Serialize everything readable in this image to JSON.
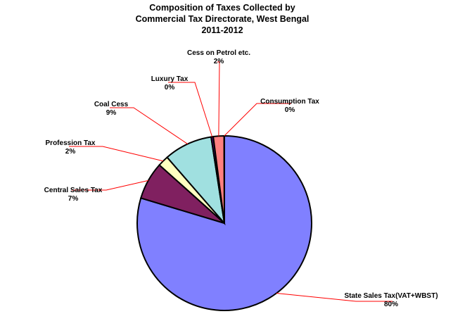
{
  "chart_data": {
    "type": "pie",
    "title_lines": [
      "Composition of Taxes Collected by",
      "Commercial Tax Directorate,  West Bengal",
      "2011-2012"
    ],
    "slices": [
      {
        "name": "State Sales Tax(VAT+WBST)",
        "value": 80,
        "label": "80%",
        "color": "#8080FF"
      },
      {
        "name": "Central Sales Tax",
        "value": 7,
        "label": "7%",
        "color": "#802060"
      },
      {
        "name": "Profession Tax",
        "value": 2,
        "label": "2%",
        "color": "#FFFFC0"
      },
      {
        "name": "Coal Cess",
        "value": 9,
        "label": "9%",
        "color": "#A0E0E0"
      },
      {
        "name": "Luxury Tax",
        "value": 0.4,
        "label": "0%",
        "color": "#600080"
      },
      {
        "name": "Cess on Petrol etc.",
        "value": 2,
        "label": "2%",
        "color": "#FF8080"
      },
      {
        "name": "Consumption Tax",
        "value": 0.05,
        "label": "0%",
        "color": "#0066CC"
      }
    ],
    "leader_line_color": "#FF0000"
  }
}
